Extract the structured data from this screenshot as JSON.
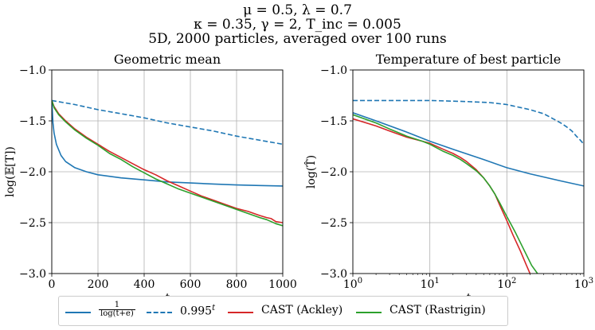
{
  "suptitle": {
    "line1": "μ = 0.5, λ = 0.7",
    "line2": "κ = 0.35, γ = 2, T_inc = 0.005",
    "line3": "5D, 2000 particles, averaged over 100 runs"
  },
  "legend": {
    "entries": [
      {
        "label_num": "1",
        "label_den": "log(t+e)",
        "color": "#1f77b4",
        "dash": "solid"
      },
      {
        "label": "0.995^t",
        "color": "#1f77b4",
        "dash": "dashed"
      },
      {
        "label": "CAST (Ackley)",
        "color": "#d62728",
        "dash": "solid"
      },
      {
        "label": "CAST (Rastrigin)",
        "color": "#2ca02c",
        "dash": "solid"
      }
    ]
  },
  "chart_data": [
    {
      "type": "line",
      "title": "Geometric mean",
      "xlabel": "t",
      "ylabel": "log(𝔼[T])",
      "xscale": "linear",
      "xlim": [
        0,
        1000
      ],
      "ylim": [
        -3.0,
        -1.0
      ],
      "xticks": [
        0,
        200,
        400,
        600,
        800,
        1000
      ],
      "xticklabels": [
        "0",
        "200",
        "400",
        "600",
        "800",
        "1000"
      ],
      "yticks": [
        -3.0,
        -2.5,
        -2.0,
        -1.5,
        -1.0
      ],
      "yticklabels": [
        "−3.0",
        "−2.5",
        "−2.0",
        "−1.5",
        "−1.0"
      ],
      "grid": true,
      "series": [
        {
          "name": "1/log(t+e)",
          "color": "#1f77b4",
          "dash": "solid",
          "x": [
            0,
            5,
            10,
            20,
            40,
            60,
            100,
            150,
            200,
            300,
            400,
            500,
            600,
            700,
            800,
            900,
            1000
          ],
          "y": [
            -1.3,
            -1.52,
            -1.62,
            -1.73,
            -1.84,
            -1.9,
            -1.96,
            -2.0,
            -2.03,
            -2.06,
            -2.08,
            -2.1,
            -2.11,
            -2.12,
            -2.13,
            -2.135,
            -2.14
          ]
        },
        {
          "name": "0.995^t",
          "color": "#1f77b4",
          "dash": "dashed",
          "x": [
            0,
            100,
            200,
            300,
            400,
            500,
            600,
            700,
            800,
            900,
            1000
          ],
          "y": [
            -1.3,
            -1.34,
            -1.39,
            -1.43,
            -1.47,
            -1.52,
            -1.56,
            -1.6,
            -1.65,
            -1.69,
            -1.73
          ]
        },
        {
          "name": "CAST (Ackley)",
          "color": "#d62728",
          "dash": "solid",
          "x": [
            0,
            10,
            30,
            60,
            100,
            150,
            200,
            250,
            300,
            350,
            400,
            450,
            500,
            550,
            600,
            650,
            700,
            750,
            800,
            850,
            900,
            930,
            950,
            970,
            1000
          ],
          "y": [
            -1.3,
            -1.36,
            -1.43,
            -1.5,
            -1.58,
            -1.66,
            -1.73,
            -1.8,
            -1.86,
            -1.92,
            -1.98,
            -2.03,
            -2.09,
            -2.14,
            -2.19,
            -2.24,
            -2.28,
            -2.32,
            -2.36,
            -2.39,
            -2.43,
            -2.45,
            -2.46,
            -2.49,
            -2.5
          ]
        },
        {
          "name": "CAST (Rastrigin)",
          "color": "#2ca02c",
          "dash": "solid",
          "x": [
            0,
            10,
            30,
            60,
            100,
            150,
            200,
            250,
            300,
            350,
            400,
            450,
            500,
            550,
            600,
            650,
            700,
            750,
            800,
            850,
            900,
            930,
            950,
            970,
            1000
          ],
          "y": [
            -1.3,
            -1.37,
            -1.44,
            -1.51,
            -1.59,
            -1.67,
            -1.74,
            -1.82,
            -1.88,
            -1.95,
            -2.01,
            -2.07,
            -2.12,
            -2.17,
            -2.21,
            -2.25,
            -2.29,
            -2.33,
            -2.37,
            -2.41,
            -2.45,
            -2.47,
            -2.49,
            -2.51,
            -2.53
          ]
        }
      ]
    },
    {
      "type": "line",
      "title": "Temperature of best particle",
      "xlabel": "t",
      "ylabel": "log(T̂)",
      "xscale": "log",
      "xlim": [
        1,
        1000
      ],
      "ylim": [
        -3.0,
        -1.0
      ],
      "xticks": [
        1,
        10,
        100,
        1000
      ],
      "xticklabels": [
        "10^0",
        "10^1",
        "10^2",
        "10^3"
      ],
      "yticks": [
        -3.0,
        -2.5,
        -2.0,
        -1.5,
        -1.0
      ],
      "yticklabels": [
        "−3.0",
        "−2.5",
        "−2.0",
        "−1.5",
        "−1.0"
      ],
      "grid": true,
      "series": [
        {
          "name": "1/log(t+e)",
          "color": "#1f77b4",
          "dash": "solid",
          "x": [
            1,
            2,
            5,
            10,
            20,
            50,
            100,
            200,
            500,
            1000
          ],
          "y": [
            -1.42,
            -1.5,
            -1.61,
            -1.7,
            -1.78,
            -1.88,
            -1.96,
            -2.02,
            -2.09,
            -2.14
          ]
        },
        {
          "name": "0.995^t",
          "color": "#1f77b4",
          "dash": "dashed",
          "x": [
            1,
            10,
            30,
            60,
            100,
            200,
            300,
            400,
            500,
            600,
            700,
            800,
            900,
            1000
          ],
          "y": [
            -1.3,
            -1.3,
            -1.31,
            -1.32,
            -1.34,
            -1.39,
            -1.43,
            -1.48,
            -1.52,
            -1.56,
            -1.6,
            -1.65,
            -1.69,
            -1.73
          ]
        },
        {
          "name": "CAST (Ackley)",
          "color": "#d62728",
          "dash": "solid",
          "x": [
            1,
            2,
            3,
            5,
            8,
            10,
            15,
            20,
            25,
            30,
            40,
            50,
            60,
            70,
            80,
            100,
            120,
            150,
            180,
            200
          ],
          "y": [
            -1.48,
            -1.55,
            -1.6,
            -1.66,
            -1.7,
            -1.72,
            -1.78,
            -1.82,
            -1.86,
            -1.9,
            -1.98,
            -2.06,
            -2.14,
            -2.22,
            -2.32,
            -2.48,
            -2.62,
            -2.78,
            -2.92,
            -3.0
          ]
        },
        {
          "name": "CAST (Rastrigin)",
          "color": "#2ca02c",
          "dash": "solid",
          "x": [
            1,
            2,
            3,
            5,
            8,
            10,
            15,
            20,
            25,
            30,
            40,
            50,
            60,
            70,
            80,
            100,
            130,
            170,
            210,
            250
          ],
          "y": [
            -1.44,
            -1.52,
            -1.58,
            -1.65,
            -1.7,
            -1.73,
            -1.8,
            -1.84,
            -1.88,
            -1.92,
            -1.99,
            -2.06,
            -2.14,
            -2.22,
            -2.3,
            -2.44,
            -2.6,
            -2.78,
            -2.92,
            -3.0
          ]
        }
      ]
    }
  ]
}
